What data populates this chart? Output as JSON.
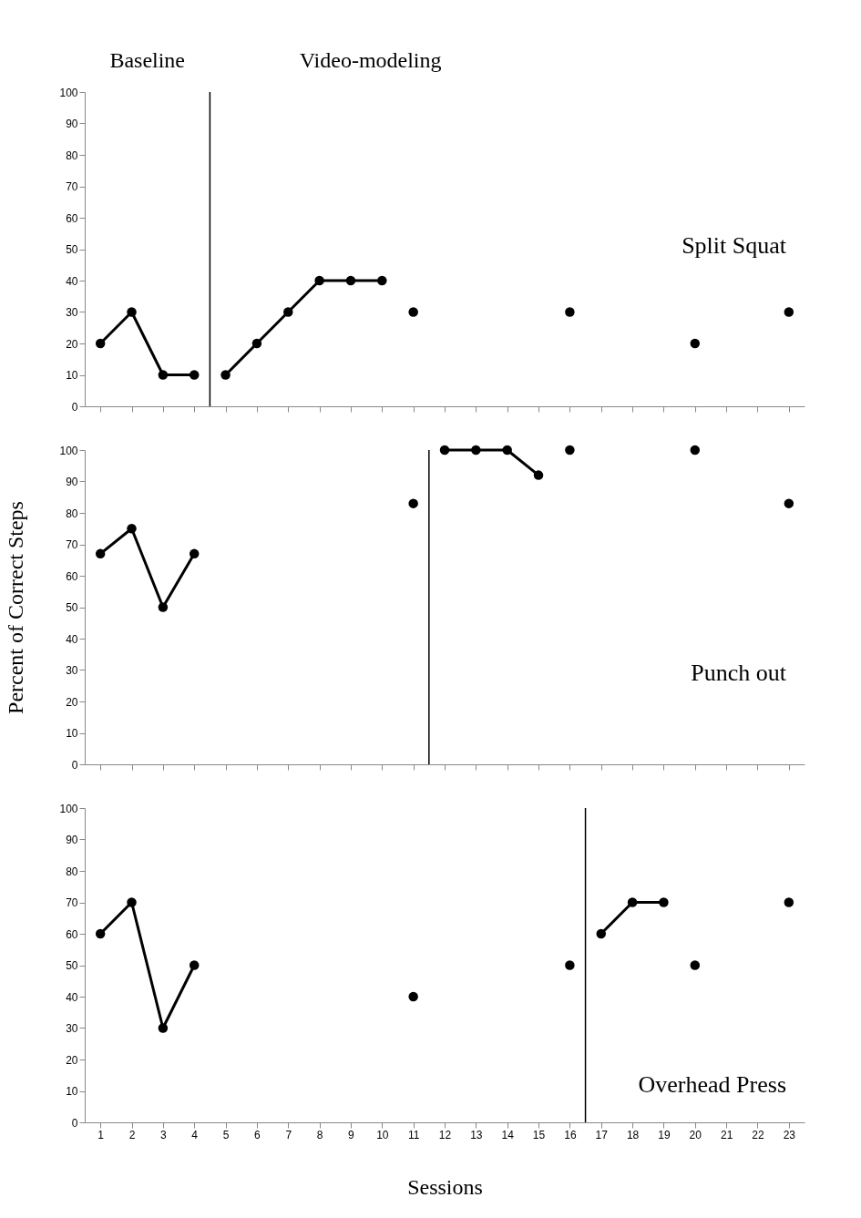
{
  "chart_data": [
    {
      "type": "line",
      "title": "Split Squat",
      "annotations": [
        "Baseline",
        "Video-modeling"
      ],
      "xlim": [
        0.5,
        23.5
      ],
      "xticks": [
        1,
        2,
        3,
        4,
        5,
        6,
        7,
        8,
        9,
        10,
        11,
        12,
        13,
        14,
        15,
        16,
        17,
        18,
        19,
        20,
        21,
        22,
        23
      ],
      "ylim": [
        0,
        100
      ],
      "yticks": [
        0,
        10,
        20,
        30,
        40,
        50,
        60,
        70,
        80,
        90,
        100
      ],
      "tick_labels": "y",
      "grid": false,
      "marker": "circle",
      "line_style": "solid",
      "ref_lines": [
        {
          "axis": "x",
          "value": 4.5
        }
      ],
      "series": [
        {
          "color": "#000000",
          "x": [
            1,
            2,
            3,
            4
          ],
          "values": [
            20,
            30,
            10,
            10
          ]
        },
        {
          "color": "#000000",
          "x": [
            5,
            6,
            7,
            8,
            9,
            10
          ],
          "values": [
            10,
            20,
            30,
            40,
            40,
            40
          ]
        },
        {
          "type": "scatter",
          "color": "#000000",
          "x": [
            11,
            16,
            20,
            23
          ],
          "values": [
            30,
            30,
            20,
            30
          ]
        }
      ]
    },
    {
      "type": "line",
      "title": "Punch out",
      "ylabel": "Percent of Correct Steps",
      "xlim": [
        0.5,
        23.5
      ],
      "xticks": [
        1,
        2,
        3,
        4,
        5,
        6,
        7,
        8,
        9,
        10,
        11,
        12,
        13,
        14,
        15,
        16,
        17,
        18,
        19,
        20,
        21,
        22,
        23
      ],
      "ylim": [
        0,
        100
      ],
      "yticks": [
        0,
        10,
        20,
        30,
        40,
        50,
        60,
        70,
        80,
        90,
        100
      ],
      "tick_labels": "y",
      "grid": false,
      "marker": "circle",
      "line_style": "solid",
      "ref_lines": [
        {
          "axis": "x",
          "value": 11.5
        }
      ],
      "series": [
        {
          "color": "#000000",
          "x": [
            1,
            2,
            3,
            4
          ],
          "values": [
            67,
            75,
            50,
            67
          ]
        },
        {
          "color": "#000000",
          "x": [
            12,
            13,
            14,
            15
          ],
          "values": [
            100,
            100,
            100,
            92
          ]
        },
        {
          "type": "scatter",
          "color": "#000000",
          "x": [
            11,
            16,
            20,
            23
          ],
          "values": [
            83,
            100,
            100,
            83
          ]
        }
      ]
    },
    {
      "type": "line",
      "title": "Overhead Press",
      "xlabel": "Sessions",
      "xlim": [
        0.5,
        23.5
      ],
      "xticks": [
        1,
        2,
        3,
        4,
        5,
        6,
        7,
        8,
        9,
        10,
        11,
        12,
        13,
        14,
        15,
        16,
        17,
        18,
        19,
        20,
        21,
        22,
        23
      ],
      "ylim": [
        0,
        100
      ],
      "yticks": [
        0,
        10,
        20,
        30,
        40,
        50,
        60,
        70,
        80,
        90,
        100
      ],
      "grid": false,
      "marker": "circle",
      "line_style": "solid",
      "ref_lines": [
        {
          "axis": "x",
          "value": 16.5
        }
      ],
      "series": [
        {
          "color": "#000000",
          "x": [
            1,
            2,
            3,
            4
          ],
          "values": [
            60,
            70,
            30,
            50
          ]
        },
        {
          "color": "#000000",
          "x": [
            17,
            18,
            19
          ],
          "values": [
            60,
            70,
            70
          ]
        },
        {
          "type": "scatter",
          "color": "#000000",
          "x": [
            11,
            16,
            20,
            23
          ],
          "values": [
            40,
            50,
            50,
            70
          ]
        }
      ]
    }
  ]
}
